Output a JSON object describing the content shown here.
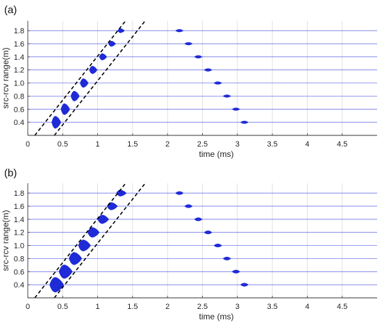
{
  "chart_data": [
    {
      "type": "line",
      "panel_label": "(a)",
      "xlabel": "time (ms)",
      "ylabel": "src-rcv range(m)",
      "xlim": [
        0,
        5
      ],
      "ylim": [
        0.2,
        1.95
      ],
      "x_ticks": [
        "0",
        "0.5",
        "1",
        "1.5",
        "2",
        "2.5",
        "3",
        "3.5",
        "4",
        "4.5"
      ],
      "x_tick_values": [
        0,
        0.5,
        1,
        1.5,
        2,
        2.5,
        3,
        3.5,
        4,
        4.5
      ],
      "y_ticks": [
        "0.4",
        "0.6",
        "0.8",
        "1.0",
        "1.2",
        "1.4",
        "1.6",
        "1.8"
      ],
      "grid": true,
      "trace_color": "#1f2bd6",
      "series": [
        {
          "range": 0.4,
          "direct_arrival_ms": 0.4,
          "reflection_ms": 3.1
        },
        {
          "range": 0.6,
          "direct_arrival_ms": 0.53,
          "reflection_ms": 2.98
        },
        {
          "range": 0.8,
          "direct_arrival_ms": 0.67,
          "reflection_ms": 2.85
        },
        {
          "range": 1.0,
          "direct_arrival_ms": 0.8,
          "reflection_ms": 2.72
        },
        {
          "range": 1.2,
          "direct_arrival_ms": 0.93,
          "reflection_ms": 2.58
        },
        {
          "range": 1.4,
          "direct_arrival_ms": 1.07,
          "reflection_ms": 2.44
        },
        {
          "range": 1.6,
          "direct_arrival_ms": 1.2,
          "reflection_ms": 2.3
        },
        {
          "range": 1.8,
          "direct_arrival_ms": 1.33,
          "reflection_ms": 2.17
        }
      ],
      "dashed_lines": [
        {
          "x": [
            0.1,
            1.4
          ],
          "y": [
            0.2,
            1.95
          ]
        },
        {
          "x": [
            0.38,
            1.68
          ],
          "y": [
            0.2,
            1.95
          ]
        }
      ]
    },
    {
      "type": "line",
      "panel_label": "(b)",
      "xlabel": "time (ms)",
      "ylabel": "src-rcv range(m)",
      "xlim": [
        0,
        5
      ],
      "ylim": [
        0.2,
        1.95
      ],
      "x_ticks": [
        "0",
        "0.5",
        "1",
        "1.5",
        "2",
        "2.5",
        "3",
        "3.5",
        "4",
        "4.5"
      ],
      "x_tick_values": [
        0,
        0.5,
        1,
        1.5,
        2,
        2.5,
        3,
        3.5,
        4,
        4.5
      ],
      "y_ticks": [
        "0.4",
        "0.6",
        "0.8",
        "1.0",
        "1.2",
        "1.4",
        "1.6",
        "1.8"
      ],
      "grid": true,
      "trace_color": "#1f2bd6",
      "series": [
        {
          "range": 0.4,
          "direct_arrival_ms": 0.4,
          "reflection_ms": 3.1
        },
        {
          "range": 0.6,
          "direct_arrival_ms": 0.53,
          "reflection_ms": 2.98
        },
        {
          "range": 0.8,
          "direct_arrival_ms": 0.67,
          "reflection_ms": 2.85
        },
        {
          "range": 1.0,
          "direct_arrival_ms": 0.8,
          "reflection_ms": 2.72
        },
        {
          "range": 1.2,
          "direct_arrival_ms": 0.93,
          "reflection_ms": 2.58
        },
        {
          "range": 1.4,
          "direct_arrival_ms": 1.07,
          "reflection_ms": 2.44
        },
        {
          "range": 1.6,
          "direct_arrival_ms": 1.2,
          "reflection_ms": 2.3
        },
        {
          "range": 1.8,
          "direct_arrival_ms": 1.33,
          "reflection_ms": 2.17
        }
      ],
      "dashed_lines": [
        {
          "x": [
            0.1,
            1.4
          ],
          "y": [
            0.2,
            1.95
          ]
        },
        {
          "x": [
            0.38,
            1.68
          ],
          "y": [
            0.2,
            1.95
          ]
        }
      ]
    }
  ]
}
